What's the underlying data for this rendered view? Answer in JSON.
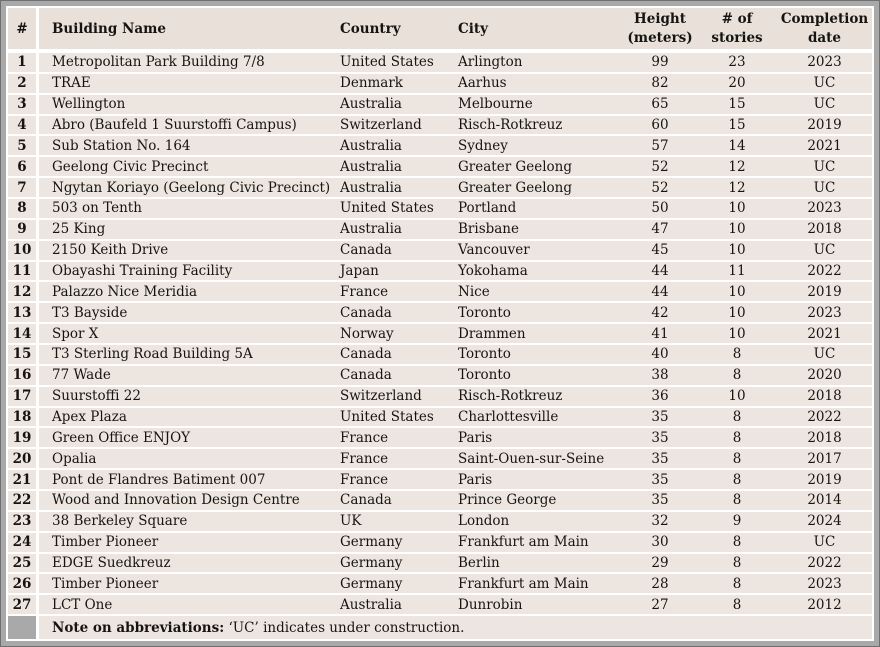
{
  "colors": {
    "frame_gray": "#a9a9a9",
    "frame_edge": "#6f6f6f",
    "header_bg": "#e8e0d9",
    "row_bg": "#ede6e0",
    "separator": "#ffffff",
    "text": "#161412"
  },
  "table": {
    "header": {
      "num": "#",
      "name": "Building Name",
      "country": "Country",
      "city": "City",
      "height_line1": "Height",
      "height_line2": "(meters)",
      "stories_line1": "# of",
      "stories_line2": "stories",
      "completion_line1": "Completion",
      "completion_line2": "date"
    },
    "rows": [
      {
        "num": "1",
        "name": "Metropolitan Park Building 7/8",
        "country": "United States",
        "city": "Arlington",
        "height": "99",
        "stories": "23",
        "completion": "2023"
      },
      {
        "num": "2",
        "name": "TRAE",
        "country": "Denmark",
        "city": "Aarhus",
        "height": "82",
        "stories": "20",
        "completion": "UC"
      },
      {
        "num": "3",
        "name": "Wellington",
        "country": "Australia",
        "city": "Melbourne",
        "height": "65",
        "stories": "15",
        "completion": "UC"
      },
      {
        "num": "4",
        "name": "Abro (Baufeld 1 Suurstoffi Campus)",
        "country": "Switzerland",
        "city": "Risch-Rotkreuz",
        "height": "60",
        "stories": "15",
        "completion": "2019"
      },
      {
        "num": "5",
        "name": "Sub Station No. 164",
        "country": "Australia",
        "city": "Sydney",
        "height": "57",
        "stories": "14",
        "completion": "2021"
      },
      {
        "num": "6",
        "name": "Geelong Civic Precinct",
        "country": "Australia",
        "city": "Greater Geelong",
        "height": "52",
        "stories": "12",
        "completion": "UC"
      },
      {
        "num": "7",
        "name": "Ngytan Koriayo (Geelong Civic Precinct)",
        "country": "Australia",
        "city": "Greater Geelong",
        "height": "52",
        "stories": "12",
        "completion": "UC"
      },
      {
        "num": "8",
        "name": "503 on Tenth",
        "country": "United States",
        "city": "Portland",
        "height": "50",
        "stories": "10",
        "completion": "2023"
      },
      {
        "num": "9",
        "name": "25 King",
        "country": "Australia",
        "city": "Brisbane",
        "height": "47",
        "stories": "10",
        "completion": "2018"
      },
      {
        "num": "10",
        "name": "2150 Keith Drive",
        "country": "Canada",
        "city": "Vancouver",
        "height": "45",
        "stories": "10",
        "completion": "UC"
      },
      {
        "num": "11",
        "name": "Obayashi Training Facility",
        "country": "Japan",
        "city": "Yokohama",
        "height": "44",
        "stories": "11",
        "completion": "2022"
      },
      {
        "num": "12",
        "name": "Palazzo Nice Meridia",
        "country": "France",
        "city": "Nice",
        "height": "44",
        "stories": "10",
        "completion": "2019"
      },
      {
        "num": "13",
        "name": "T3 Bayside",
        "country": "Canada",
        "city": "Toronto",
        "height": "42",
        "stories": "10",
        "completion": "2023"
      },
      {
        "num": "14",
        "name": "Spor X",
        "country": "Norway",
        "city": "Drammen",
        "height": "41",
        "stories": "10",
        "completion": "2021"
      },
      {
        "num": "15",
        "name": "T3 Sterling Road Building 5A",
        "country": "Canada",
        "city": "Toronto",
        "height": "40",
        "stories": "8",
        "completion": "UC"
      },
      {
        "num": "16",
        "name": "77 Wade",
        "country": "Canada",
        "city": "Toronto",
        "height": "38",
        "stories": "8",
        "completion": "2020"
      },
      {
        "num": "17",
        "name": "Suurstoffi 22",
        "country": "Switzerland",
        "city": "Risch-Rotkreuz",
        "height": "36",
        "stories": "10",
        "completion": "2018"
      },
      {
        "num": "18",
        "name": "Apex Plaza",
        "country": "United States",
        "city": "Charlottesville",
        "height": "35",
        "stories": "8",
        "completion": "2022"
      },
      {
        "num": "19",
        "name": "Green Office ENJOY",
        "country": "France",
        "city": "Paris",
        "height": "35",
        "stories": "8",
        "completion": "2018"
      },
      {
        "num": "20",
        "name": "Opalia",
        "country": "France",
        "city": "Saint-Ouen-sur-Seine",
        "height": "35",
        "stories": "8",
        "completion": "2017"
      },
      {
        "num": "21",
        "name": "Pont de Flandres Batiment 007",
        "country": "France",
        "city": "Paris",
        "height": "35",
        "stories": "8",
        "completion": "2019"
      },
      {
        "num": "22",
        "name": "Wood and Innovation Design Centre",
        "country": "Canada",
        "city": "Prince George",
        "height": "35",
        "stories": "8",
        "completion": "2014"
      },
      {
        "num": "23",
        "name": "38 Berkeley Square",
        "country": "UK",
        "city": "London",
        "height": "32",
        "stories": "9",
        "completion": "2024"
      },
      {
        "num": "24",
        "name": "Timber Pioneer",
        "country": "Germany",
        "city": "Frankfurt am Main",
        "height": "30",
        "stories": "8",
        "completion": "UC"
      },
      {
        "num": "25",
        "name": "EDGE Suedkreuz",
        "country": "Germany",
        "city": "Berlin",
        "height": "29",
        "stories": "8",
        "completion": "2022"
      },
      {
        "num": "26",
        "name": "Timber Pioneer",
        "country": "Germany",
        "city": "Frankfurt am Main",
        "height": "28",
        "stories": "8",
        "completion": "2023"
      },
      {
        "num": "27",
        "name": "LCT One",
        "country": "Australia",
        "city": "Dunrobin",
        "height": "27",
        "stories": "8",
        "completion": "2012"
      }
    ],
    "note_bold": "Note on abbreviations:",
    "note_rest": " ‘UC’ indicates under construction."
  }
}
